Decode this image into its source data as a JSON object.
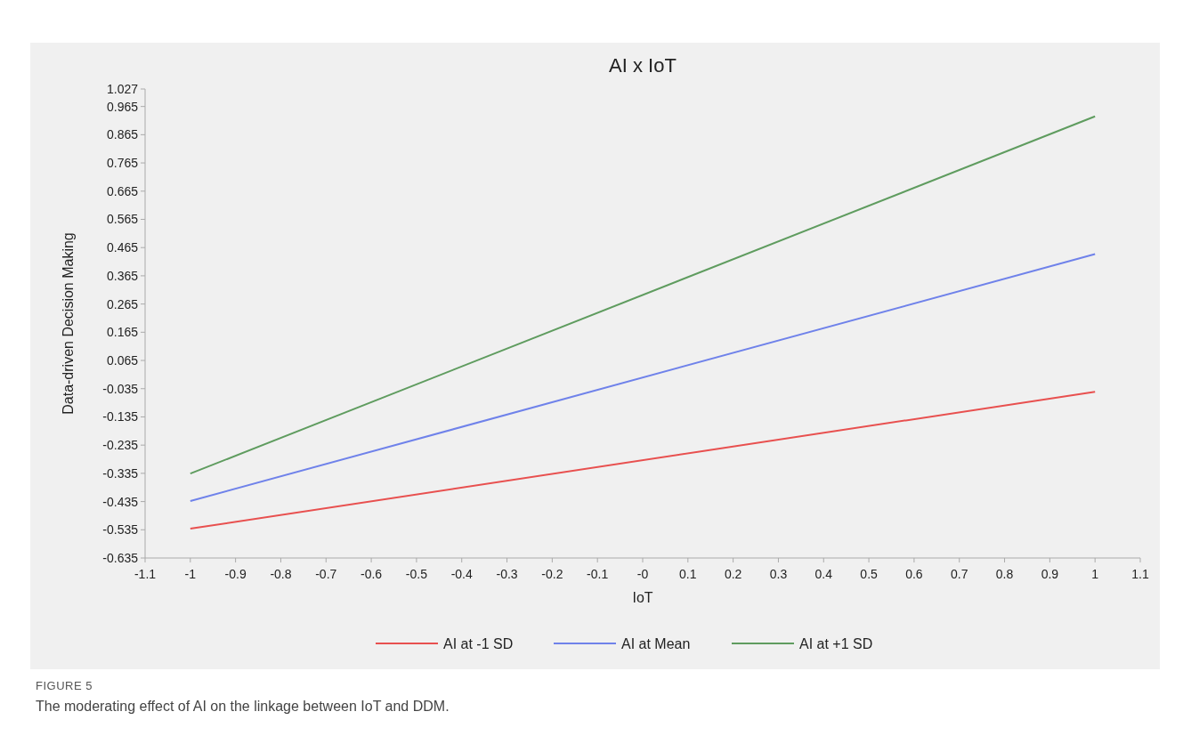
{
  "chart_data": {
    "type": "line",
    "title": "AI x IoT",
    "xlabel": "IoT",
    "ylabel": "Data-driven Decision Making",
    "x": [
      -1,
      1
    ],
    "series": [
      {
        "name": "AI at -1 SD",
        "color": "#e8504f",
        "values": [
          -0.531,
          -0.046
        ]
      },
      {
        "name": "AI at Mean",
        "color": "#6f82ea",
        "values": [
          -0.433,
          0.442
        ]
      },
      {
        "name": "AI at +1 SD",
        "color": "#5f9c5f",
        "values": [
          -0.336,
          0.93
        ]
      }
    ],
    "xlim": [
      -1.1,
      1.1
    ],
    "xticks": [
      -1.1,
      -1,
      -0.9,
      -0.8,
      -0.7,
      -0.6,
      -0.5,
      -0.4,
      -0.3,
      -0.2,
      -0.1,
      {
        "value": 0,
        "label": "-0"
      },
      0.1,
      0.2,
      0.3,
      0.4,
      0.5,
      0.6,
      0.7,
      0.8,
      0.9,
      1,
      1.1
    ],
    "ylim": [
      -0.635,
      1.027
    ],
    "yticks": [
      -0.635,
      -0.535,
      -0.435,
      -0.335,
      -0.235,
      -0.135,
      -0.035,
      0.065,
      0.165,
      0.265,
      0.365,
      0.465,
      0.565,
      0.665,
      0.765,
      0.865,
      0.965,
      1.027
    ],
    "legend": "bottom",
    "grid": false,
    "marker": "none",
    "line_style": "solid",
    "annotations": [
      "FIGURE 5",
      "The moderating effect of AI on the linkage between IoT and DDM."
    ]
  }
}
